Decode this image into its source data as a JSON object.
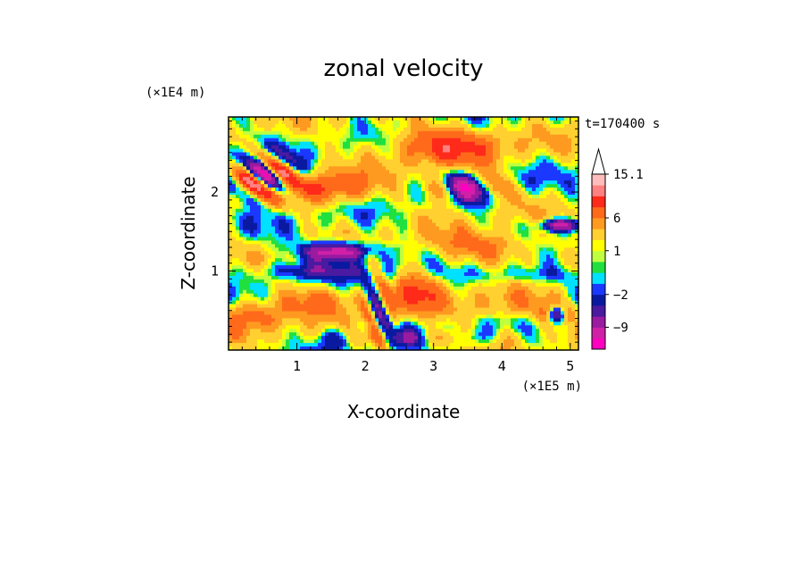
{
  "chart_data": {
    "type": "heatmap",
    "title": "zonal velocity",
    "xlabel": "X-coordinate",
    "ylabel": "Z-coordinate",
    "x_unit": "(×1E5 m)",
    "y_unit": "(×1E4 m)",
    "time_label": "t=170400 s",
    "xlim": [
      0,
      5.12
    ],
    "ylim": [
      0,
      2.95
    ],
    "x_ticks": [
      "1",
      "2",
      "3",
      "4",
      "5"
    ],
    "x_tick_values": [
      1,
      2,
      3,
      4,
      5
    ],
    "y_ticks": [
      "1",
      "2"
    ],
    "y_tick_values": [
      1,
      2
    ],
    "colorbar": {
      "labels": [
        "15.1",
        "6",
        "1",
        "−2",
        "−9"
      ],
      "label_values": [
        15.1,
        6,
        1,
        -2,
        -9
      ],
      "levels": [
        -16,
        -12,
        -9,
        -6,
        -4,
        -2,
        -1,
        0,
        0.5,
        1,
        2,
        4,
        6,
        9,
        12,
        15.1
      ],
      "colors": [
        "#ff00c0",
        "#d020a8",
        "#9a1aa0",
        "#4a1aa0",
        "#0a1aa0",
        "#1a38ff",
        "#00e0ff",
        "#20e040",
        "#c0ff40",
        "#ffff00",
        "#ffd030",
        "#ff9a20",
        "#ff6a1a",
        "#ff2a1a",
        "#ff8080",
        "#ffbcbc"
      ],
      "extend_top": true
    },
    "field_features": [
      {
        "x": 0.55,
        "z": 2.2,
        "amp": -16,
        "sx": 0.45,
        "sz": 0.28,
        "kx": 9,
        "kz": 12
      },
      {
        "x": 1.6,
        "z": 1.25,
        "amp": -14,
        "sx": 0.5,
        "sz": 0.12,
        "kx": 0,
        "kz": 0
      },
      {
        "x": 3.5,
        "z": 2.05,
        "amp": -13,
        "sx": 0.5,
        "sz": 0.18,
        "kx": 6,
        "kz": 4
      },
      {
        "x": 4.85,
        "z": 1.58,
        "amp": -12,
        "sx": 0.3,
        "sz": 0.08,
        "kx": 0,
        "kz": 0
      },
      {
        "x": 1.5,
        "z": 2.05,
        "amp": 8,
        "sx": 0.6,
        "sz": 0.2,
        "kx": 0,
        "kz": 0
      },
      {
        "x": 3.2,
        "z": 2.6,
        "amp": 8,
        "sx": 0.9,
        "sz": 0.25,
        "kx": 0,
        "kz": 0
      },
      {
        "x": 3.8,
        "z": 1.3,
        "amp": 6,
        "sx": 0.8,
        "sz": 0.2,
        "kx": 0,
        "kz": 0
      },
      {
        "x": 0.4,
        "z": 0.45,
        "amp": 6,
        "sx": 0.5,
        "sz": 0.2,
        "kx": 0,
        "kz": 0
      },
      {
        "x": 1.3,
        "z": 0.65,
        "amp": 5,
        "sx": 0.6,
        "sz": 0.2,
        "kx": 0,
        "kz": 0
      },
      {
        "x": 2.75,
        "z": 0.75,
        "amp": 7,
        "sx": 0.35,
        "sz": 0.3,
        "kx": 0,
        "kz": 0
      },
      {
        "x": 4.2,
        "z": 0.55,
        "amp": 5,
        "sx": 0.9,
        "sz": 0.18,
        "kx": 0,
        "kz": 0
      },
      {
        "x": 2.2,
        "z": 0.5,
        "amp": -8,
        "sx": 0.25,
        "sz": 0.5,
        "kx": 14,
        "kz": 8
      },
      {
        "x": 1.2,
        "z": 1.0,
        "amp": -5,
        "sx": 0.9,
        "sz": 0.12,
        "kx": 0,
        "kz": 0
      },
      {
        "x": 4.3,
        "z": 0.95,
        "amp": -4,
        "sx": 0.9,
        "sz": 0.12,
        "kx": 0,
        "kz": 0
      },
      {
        "x": 2.6,
        "z": 0.15,
        "amp": -5,
        "sx": 1.5,
        "sz": 0.12,
        "kx": 6,
        "kz": 0
      },
      {
        "x": 4.8,
        "z": 0.45,
        "amp": -10,
        "sx": 0.2,
        "sz": 0.1,
        "kx": 12,
        "kz": 0
      }
    ]
  }
}
